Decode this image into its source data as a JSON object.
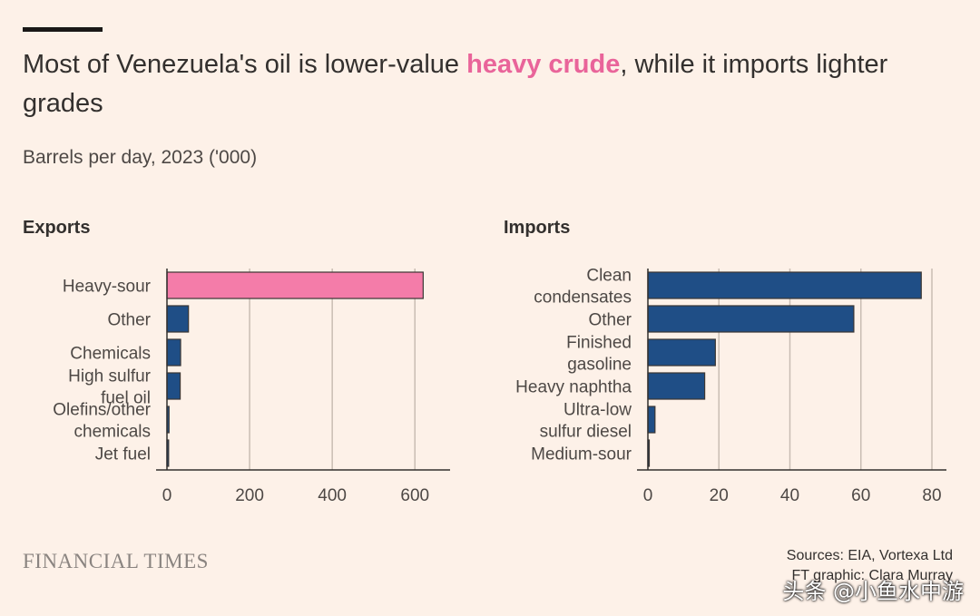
{
  "header": {
    "title_pre": "Most of Venezuela's oil is lower-value ",
    "title_highlight": "heavy crude",
    "title_post": ", while it imports lighter grades",
    "subtitle": "Barrels per day, 2023 ('000)"
  },
  "colors": {
    "highlight": "#f47ca9",
    "bar": "#1f4e86",
    "grid": "#c9bdb3",
    "axis": "#33302e"
  },
  "chart_data": [
    {
      "type": "bar",
      "orientation": "horizontal",
      "title": "Exports",
      "categories": [
        "Heavy-sour",
        "Other",
        "Chemicals",
        "High sulfur fuel oil",
        "Olefins/other chemicals",
        "Jet fuel"
      ],
      "label_lines": [
        [
          "Heavy-sour"
        ],
        [
          "Other"
        ],
        [
          "Chemicals"
        ],
        [
          "High sulfur",
          "fuel oil"
        ],
        [
          "Olefins/other",
          "chemicals"
        ],
        [
          "Jet fuel"
        ]
      ],
      "values": [
        620,
        52,
        33,
        32,
        5,
        4
      ],
      "highlight": [
        true,
        false,
        false,
        false,
        false,
        false
      ],
      "xlim": [
        0,
        650
      ],
      "xticks": [
        0,
        200,
        400,
        600
      ],
      "xtick_labels": [
        "0",
        "200",
        "400",
        "600"
      ]
    },
    {
      "type": "bar",
      "orientation": "horizontal",
      "title": "Imports",
      "categories": [
        "Clean condensates",
        "Other",
        "Finished gasoline",
        "Heavy naphtha",
        "Ultra-low sulfur diesel",
        "Medium-sour"
      ],
      "label_lines": [
        [
          "Clean",
          "condensates"
        ],
        [
          "Other"
        ],
        [
          "Finished",
          "gasoline"
        ],
        [
          "Heavy naphtha"
        ],
        [
          "Ultra-low",
          "sulfur diesel"
        ],
        [
          "Medium-sour"
        ]
      ],
      "values": [
        77,
        58,
        19,
        16,
        2,
        0.3
      ],
      "highlight": [
        false,
        false,
        false,
        false,
        false,
        false
      ],
      "xlim": [
        0,
        80
      ],
      "xticks": [
        0,
        20,
        40,
        60,
        80
      ],
      "xtick_labels": [
        "0",
        "20",
        "40",
        "60",
        "80"
      ]
    }
  ],
  "footer": {
    "logo": "FINANCIAL TIMES",
    "sources": "Sources: EIA, Vortexa Ltd",
    "credit": "FT graphic: Clara Murray",
    "watermark": "头条 @小鱼水中游"
  }
}
